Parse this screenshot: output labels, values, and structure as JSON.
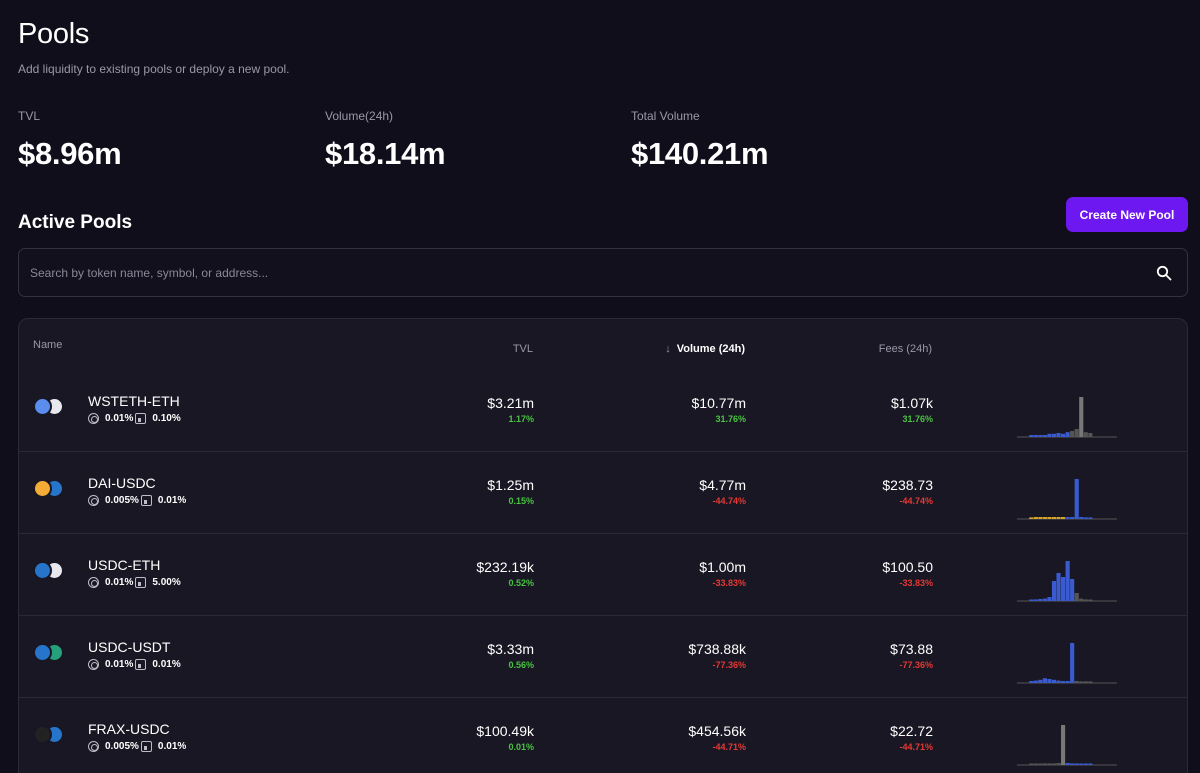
{
  "header": {
    "title": "Pools",
    "subtitle": "Add liquidity to existing pools or deploy a new pool."
  },
  "stats": [
    {
      "label": "TVL",
      "value": "$8.96m"
    },
    {
      "label": "Volume(24h)",
      "value": "$18.14m"
    },
    {
      "label": "Total Volume",
      "value": "$140.21m"
    }
  ],
  "section": {
    "title": "Active Pools",
    "create_label": "Create New Pool"
  },
  "search": {
    "placeholder": "Search by token name, symbol, or address...",
    "value": ""
  },
  "table": {
    "columns": {
      "name": "Name",
      "tvl": "TVL",
      "volume": "Volume (24h)",
      "fees": "Fees (24h)"
    },
    "sort_arrow": "↓",
    "rows": [
      {
        "name": "WSTETH-ETH",
        "fee": "0.01%",
        "bin": "0.10%",
        "tvl": "$3.21m",
        "tvl_change": "1.17%",
        "volume": "$10.77m",
        "volume_change": "31.76%",
        "fees": "$1.07k",
        "fees_change": "31.76%",
        "tvl_trend": "up",
        "vol_trend": "up",
        "fees_trend": "up",
        "token_a_color": "#5b8def",
        "token_b_color": "#e8e8ee",
        "spark": {
          "active_bin": 0.9,
          "bars": [
            0.05,
            0.05,
            0.05,
            0.05,
            0.08,
            0.08,
            0.1,
            0.08,
            0.12,
            0.15,
            0.2,
            1.0,
            0.12,
            0.1
          ],
          "colors": [
            "#3a5bd0",
            "#3a5bd0",
            "#3a5bd0",
            "#3a5bd0",
            "#3a5bd0",
            "#3a5bd0",
            "#3a5bd0",
            "#3a5bd0",
            "#3a5bd0",
            "#555",
            "#555",
            "#777",
            "#555",
            "#555"
          ]
        }
      },
      {
        "name": "DAI-USDC",
        "fee": "0.005%",
        "bin": "0.01%",
        "tvl": "$1.25m",
        "tvl_change": "0.15%",
        "volume": "$4.77m",
        "volume_change": "-44.74%",
        "fees": "$238.73",
        "fees_change": "-44.74%",
        "tvl_trend": "up",
        "vol_trend": "down",
        "fees_trend": "down",
        "token_a_color": "#f5ac37",
        "token_b_color": "#2775ca",
        "spark": {
          "bars": [
            0.04,
            0.05,
            0.05,
            0.05,
            0.05,
            0.05,
            0.05,
            0.05,
            0.05,
            0.05,
            1.0,
            0.05,
            0.04,
            0.04
          ],
          "colors": [
            "#d4a52a",
            "#d4a52a",
            "#d4a52a",
            "#d4a52a",
            "#d4a52a",
            "#d4a52a",
            "#d4a52a",
            "#d4a52a",
            "#3a5bd0",
            "#3a5bd0",
            "#3a5bd0",
            "#3a5bd0",
            "#3a5bd0",
            "#3a5bd0"
          ]
        }
      },
      {
        "name": "USDC-ETH",
        "fee": "0.01%",
        "bin": "5.00%",
        "tvl": "$232.19k",
        "tvl_change": "0.52%",
        "volume": "$1.00m",
        "volume_change": "-33.83%",
        "fees": "$100.50",
        "fees_change": "-33.83%",
        "tvl_trend": "up",
        "vol_trend": "down",
        "fees_trend": "down",
        "token_a_color": "#2775ca",
        "token_b_color": "#e8e8ee",
        "spark": {
          "bars": [
            0.03,
            0.04,
            0.05,
            0.06,
            0.1,
            0.5,
            0.7,
            0.6,
            1.0,
            0.55,
            0.2,
            0.06,
            0.04,
            0.03
          ],
          "colors": [
            "#3a5bd0",
            "#3a5bd0",
            "#3a5bd0",
            "#3a5bd0",
            "#3a5bd0",
            "#3a5bd0",
            "#3a5bd0",
            "#3a5bd0",
            "#3a5bd0",
            "#3a5bd0",
            "#555",
            "#555",
            "#555",
            "#555"
          ]
        }
      },
      {
        "name": "USDC-USDT",
        "fee": "0.01%",
        "bin": "0.01%",
        "tvl": "$3.33m",
        "tvl_change": "0.56%",
        "volume": "$738.88k",
        "volume_change": "-77.36%",
        "fees": "$73.88",
        "fees_change": "-77.36%",
        "tvl_trend": "up",
        "vol_trend": "down",
        "fees_trend": "down",
        "token_a_color": "#2775ca",
        "token_b_color": "#26a17b",
        "spark": {
          "bars": [
            0.05,
            0.06,
            0.08,
            0.12,
            0.1,
            0.08,
            0.06,
            0.05,
            0.05,
            1.0,
            0.05,
            0.04,
            0.04,
            0.04
          ],
          "colors": [
            "#3a5bd0",
            "#3a5bd0",
            "#3a5bd0",
            "#3a5bd0",
            "#3a5bd0",
            "#3a5bd0",
            "#3a5bd0",
            "#3a5bd0",
            "#3a5bd0",
            "#3a5bd0",
            "#555",
            "#555",
            "#555",
            "#555"
          ]
        }
      },
      {
        "name": "FRAX-USDC",
        "fee": "0.005%",
        "bin": "0.01%",
        "tvl": "$100.49k",
        "tvl_change": "0.01%",
        "volume": "$454.56k",
        "volume_change": "-44.71%",
        "fees": "$22.72",
        "fees_change": "-44.71%",
        "tvl_trend": "up",
        "vol_trend": "down",
        "fees_trend": "down",
        "token_a_color": "#222222",
        "token_b_color": "#2775ca",
        "spark": {
          "bars": [
            0.03,
            0.03,
            0.03,
            0.04,
            0.04,
            0.04,
            0.05,
            1.0,
            0.05,
            0.04,
            0.04,
            0.03,
            0.03,
            0.03
          ],
          "colors": [
            "#555",
            "#555",
            "#555",
            "#555",
            "#555",
            "#555",
            "#555",
            "#777",
            "#3a5bd0",
            "#3a5bd0",
            "#3a5bd0",
            "#3a5bd0",
            "#3a5bd0",
            "#3a5bd0"
          ]
        }
      }
    ]
  },
  "colors": {
    "accent": "#6d18f0",
    "positive": "#49c341",
    "negative": "#e53935"
  }
}
